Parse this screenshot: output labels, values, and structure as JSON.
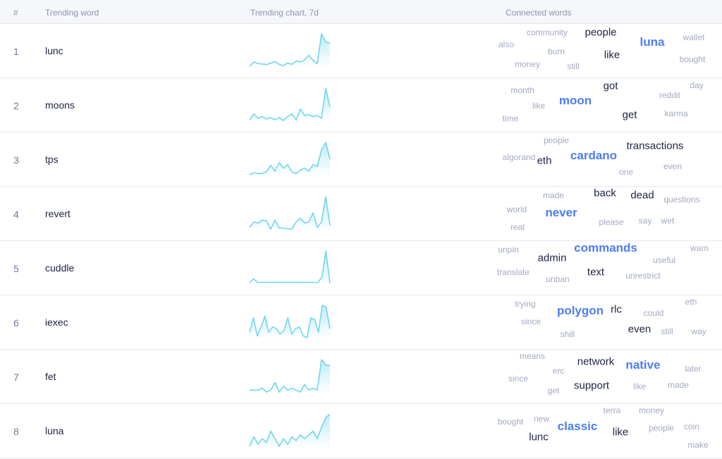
{
  "header": {
    "rank": "#",
    "word": "Trending word",
    "chart": "Trending chart, 7d",
    "connected": "Connected words"
  },
  "rows": [
    {
      "rank": 1,
      "word": "lunc",
      "trend": [
        2,
        15,
        10,
        9,
        7,
        12,
        16,
        8,
        4,
        12,
        8,
        18,
        15,
        22,
        35,
        20,
        10,
        100,
        75,
        72
      ],
      "connected": [
        "community",
        "people",
        "wallet",
        "also",
        "burn",
        "luna",
        "like",
        "bought",
        "money",
        "still"
      ]
    },
    {
      "rank": 2,
      "word": "moons",
      "trend": [
        5,
        22,
        10,
        15,
        8,
        12,
        6,
        12,
        4,
        15,
        22,
        5,
        35,
        18,
        20,
        15,
        18,
        10,
        92,
        40
      ],
      "connected": [
        "month",
        "got",
        "reddit",
        "day",
        "like",
        "moon",
        "time",
        "get",
        "karma"
      ]
    },
    {
      "rank": 3,
      "word": "tps",
      "trend": [
        2,
        8,
        5,
        6,
        10,
        28,
        12,
        35,
        20,
        30,
        10,
        5,
        15,
        20,
        12,
        30,
        25,
        70,
        90,
        45
      ],
      "connected": [
        "people",
        "transactions",
        "algorand",
        "eth",
        "cardano",
        "even",
        "one"
      ]
    },
    {
      "rank": 4,
      "word": "revert",
      "trend": [
        10,
        25,
        22,
        30,
        28,
        5,
        30,
        8,
        8,
        6,
        5,
        25,
        35,
        22,
        25,
        50,
        10,
        25,
        95,
        15
      ],
      "connected": [
        "made",
        "back",
        "dead",
        "questions",
        "world",
        "never",
        "please",
        "say",
        "wet",
        "real"
      ]
    },
    {
      "rank": 5,
      "word": "cuddle",
      "trend": [
        5,
        15,
        5,
        5,
        5,
        5,
        5,
        5,
        5,
        5,
        5,
        5,
        5,
        5,
        5,
        5,
        5,
        5,
        20,
        95,
        2
      ],
      "connected": [
        "unpin",
        "admin",
        "commands",
        "warn",
        "useful",
        "translate",
        "text",
        "unrestrict",
        "unban"
      ]
    },
    {
      "rank": 6,
      "word": "iexec",
      "trend": [
        15,
        55,
        5,
        30,
        60,
        15,
        30,
        25,
        10,
        20,
        55,
        10,
        25,
        30,
        5,
        0,
        55,
        50,
        15,
        90,
        85,
        25
      ],
      "connected": [
        "trying",
        "polygon",
        "rlc",
        "eth",
        "could",
        "since",
        "even",
        "still",
        "way",
        "shill"
      ]
    },
    {
      "rank": 7,
      "word": "fet",
      "trend": [
        10,
        10,
        10,
        15,
        5,
        10,
        30,
        5,
        20,
        10,
        15,
        10,
        5,
        25,
        10,
        15,
        10,
        90,
        75,
        75
      ],
      "connected": [
        "means",
        "network",
        "native",
        "erc",
        "later",
        "since",
        "support",
        "like",
        "made",
        "get"
      ]
    },
    {
      "rank": 8,
      "word": "luna",
      "trend": [
        5,
        30,
        10,
        25,
        15,
        45,
        25,
        5,
        25,
        10,
        30,
        20,
        35,
        25,
        35,
        45,
        25,
        55,
        80,
        90
      ],
      "connected": [
        "terra",
        "money",
        "new",
        "bought",
        "classic",
        "like",
        "people",
        "coin",
        "lunc",
        "make"
      ]
    }
  ]
}
